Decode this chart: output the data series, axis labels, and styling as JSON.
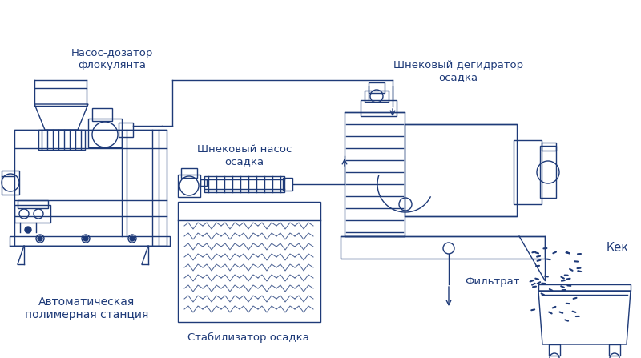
{
  "color": "#1e3a78",
  "bg_color": "#ffffff",
  "labels": {
    "pump_label": "Насос-дозатор\nфлокулянта",
    "polymer_label": "Автоматическая\nполимерная станция",
    "screw_pump_label": "Шнековый насос\nосадка",
    "stabilizer_label": "Стабилизатор осадка",
    "dehydrator_label": "Шнековый дегидратор\nосадка",
    "cake_label": "Кек",
    "filtrate_label": "Фильтрат"
  },
  "figsize": [
    8.0,
    4.47
  ],
  "dpi": 100
}
